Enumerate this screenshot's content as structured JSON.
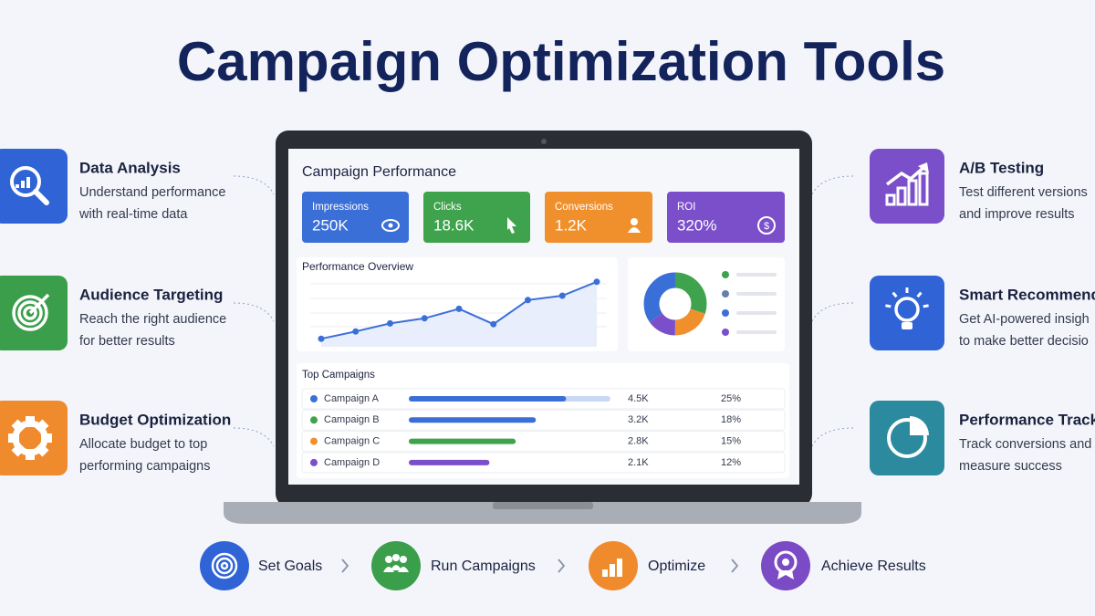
{
  "title": "Campaign Optimization Tools",
  "features_left": [
    {
      "title": "Data Analysis",
      "lines": [
        "Understand performance",
        "with real-time data"
      ]
    },
    {
      "title": "Audience Targeting",
      "lines": [
        "Reach the right audience",
        "for better results"
      ]
    },
    {
      "title": "Budget Optimization",
      "lines": [
        "Allocate budget to top",
        "performing campaigns"
      ]
    }
  ],
  "features_right": [
    {
      "title": "A/B Testing",
      "lines": [
        "Test different versions",
        "and improve results"
      ]
    },
    {
      "title": "Smart Recommendat",
      "lines": [
        "Get AI-powered insigh",
        "to make better decisio"
      ]
    },
    {
      "title": "Performance Trackin",
      "lines": [
        "Track conversions and",
        "measure success"
      ]
    }
  ],
  "dashboard": {
    "title": "Campaign Performance",
    "kpis": [
      {
        "label": "Impressions",
        "value": "250K"
      },
      {
        "label": "Clicks",
        "value": "18.6K"
      },
      {
        "label": "Conversions",
        "value": "1.2K"
      },
      {
        "label": "ROI",
        "value": "320%"
      }
    ],
    "overview_title": "Performance Overview",
    "line_values": [
      11,
      21,
      32,
      39,
      52,
      31,
      64,
      70,
      89
    ],
    "donut_values": [
      30,
      20,
      15,
      35
    ],
    "top_title": "Top Campaigns",
    "campaigns": [
      {
        "name": "Campaign A",
        "bar": 78,
        "count": "4.5K",
        "share": "25%"
      },
      {
        "name": "Campaign B",
        "bar": 63,
        "count": "3.2K",
        "share": "18%"
      },
      {
        "name": "Campaign C",
        "bar": 53,
        "count": "2.8K",
        "share": "15%"
      },
      {
        "name": "Campaign D",
        "bar": 40,
        "count": "2.1K",
        "share": "12%"
      }
    ]
  },
  "steps": [
    "Set Goals",
    "Run Campaigns",
    "Optimize",
    "Achieve Results"
  ]
}
